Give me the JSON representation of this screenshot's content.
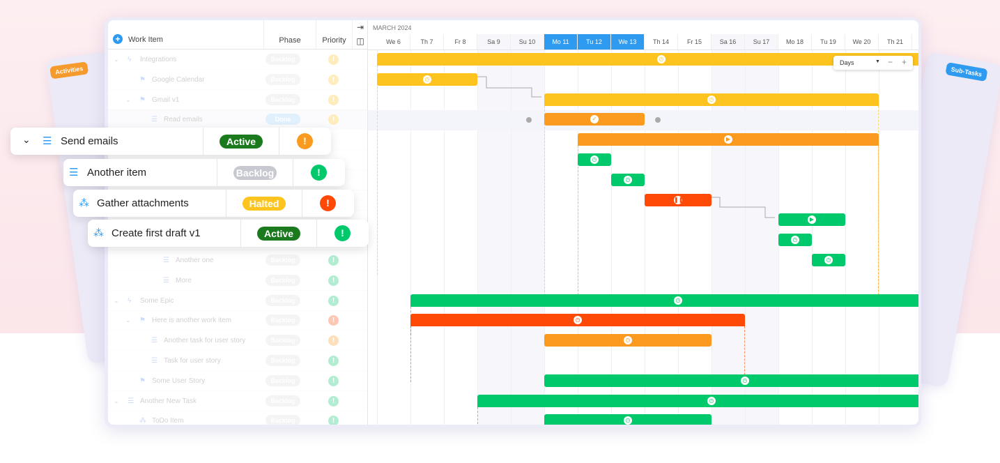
{
  "colors": {
    "yellow": "#fdc41f",
    "orange": "#fa9a1e",
    "green": "#00c96b",
    "red": "#fe4a06",
    "blue": "#2e9af0",
    "darkgreen": "#1b7a1d",
    "gray": "#c8c8d0"
  },
  "side_panels": {
    "left_tag": "Activities",
    "right_tag": "Sub-Tasks"
  },
  "table": {
    "add_icon": "plus-circle-icon",
    "col_work_item": "Work Item",
    "col_phase": "Phase",
    "col_priority": "Priority",
    "rows": [
      {
        "label": "Integrations",
        "icon": "epic-icon",
        "phase": "Backlog",
        "priority": "yellow",
        "indent": 0,
        "chev": true
      },
      {
        "label": "Google Calendar",
        "icon": "story-icon",
        "phase": "Backlog",
        "priority": "yellow",
        "indent": 1
      },
      {
        "label": "Gmail v1",
        "icon": "story-icon",
        "phase": "Backlog",
        "priority": "yellow",
        "indent": 1,
        "chev": true
      },
      {
        "label": "Read emails",
        "icon": "task-icon",
        "phase": "Done",
        "priority": "yellow",
        "indent": 2
      },
      {
        "label": "",
        "phase": "",
        "priority": ""
      },
      {
        "label": "",
        "phase": "",
        "priority": ""
      },
      {
        "label": "",
        "phase": "",
        "priority": ""
      },
      {
        "label": "",
        "phase": "",
        "priority": ""
      },
      {
        "label": "",
        "phase": "",
        "priority": ""
      },
      {
        "label": "",
        "phase": "",
        "priority": ""
      },
      {
        "label": "Another one",
        "icon": "task-icon",
        "phase": "Backlog",
        "priority": "green",
        "indent": 3
      },
      {
        "label": "More",
        "icon": "task-icon",
        "phase": "Backlog",
        "priority": "green",
        "indent": 3
      },
      {
        "label": "Some Epic",
        "icon": "epic-icon",
        "phase": "Backlog",
        "priority": "green",
        "indent": 0,
        "chev": true
      },
      {
        "label": "Here is another work item",
        "icon": "story-icon",
        "phase": "Backlog",
        "priority": "red",
        "indent": 1,
        "chev": true
      },
      {
        "label": "Another task for user story",
        "icon": "task-icon",
        "phase": "Backlog",
        "priority": "orange",
        "indent": 2
      },
      {
        "label": "Task for user story",
        "icon": "task-icon",
        "phase": "Backlog",
        "priority": "green",
        "indent": 2
      },
      {
        "label": "Some User Story",
        "icon": "story-icon",
        "phase": "Backlog",
        "priority": "green",
        "indent": 1
      },
      {
        "label": "Another New Task",
        "icon": "task-icon",
        "phase": "Backlog",
        "priority": "green",
        "indent": 0,
        "chev": true
      },
      {
        "label": "ToDo Item",
        "icon": "subtask-icon",
        "phase": "Backlog",
        "priority": "green",
        "indent": 1
      }
    ]
  },
  "cards": [
    {
      "label": "Send emails",
      "icon": "task-icon",
      "phase": "Active",
      "phase_color": "darkgreen",
      "priority": "orange"
    },
    {
      "label": "Another item",
      "icon": "task-icon",
      "phase": "Backlog",
      "phase_color": "gray",
      "priority": "green"
    },
    {
      "label": "Gather attachments",
      "icon": "hierarchy-icon",
      "phase": "Halted",
      "phase_color": "yellow",
      "priority": "red"
    },
    {
      "label": "Create first draft v1",
      "icon": "hierarchy-icon",
      "phase": "Active",
      "phase_color": "darkgreen",
      "priority": "green"
    }
  ],
  "gantt": {
    "month": "MARCH 2024",
    "zoom_select": "Days",
    "days": [
      "We 6",
      "Th 7",
      "Fr 8",
      "Sa 9",
      "Su 10",
      "Mo 11",
      "Tu 12",
      "We 13",
      "Th 14",
      "Fr 15",
      "Sa 16",
      "Su 17",
      "Mo 18",
      "Tu 19",
      "We 20",
      "Th 21"
    ],
    "highlighted_days": [
      "Mo 11",
      "Tu 12",
      "We 13"
    ],
    "bars": [
      {
        "row": 0,
        "start": "2024-03-06",
        "end": "2024-03-22",
        "color": "yellow",
        "summary": true,
        "icon": "clock"
      },
      {
        "row": 1,
        "start": "2024-03-06",
        "end": "2024-03-08",
        "color": "yellow",
        "icon": "clock"
      },
      {
        "row": 2,
        "start": "2024-03-11",
        "end": "2024-03-20",
        "color": "yellow",
        "summary": true,
        "icon": "clock"
      },
      {
        "row": 3,
        "start": "2024-03-11",
        "end": "2024-03-13",
        "color": "orange",
        "icon": "check"
      },
      {
        "row": 4,
        "start": "2024-03-12",
        "end": "2024-03-20",
        "color": "orange",
        "summary": true,
        "icon": "play"
      },
      {
        "row": 5,
        "start": "2024-03-12",
        "end": "2024-03-12",
        "color": "green",
        "icon": "clock"
      },
      {
        "row": 6,
        "start": "2024-03-13",
        "end": "2024-03-13",
        "color": "green",
        "icon": "clock"
      },
      {
        "row": 7,
        "start": "2024-03-14",
        "end": "2024-03-15",
        "color": "red",
        "icon": "pause"
      },
      {
        "row": 8,
        "start": "2024-03-18",
        "end": "2024-03-19",
        "color": "green",
        "icon": "play"
      },
      {
        "row": 9,
        "start": "2024-03-18",
        "end": "2024-03-18",
        "color": "green",
        "icon": "clock"
      },
      {
        "row": 10,
        "start": "2024-03-19",
        "end": "2024-03-19",
        "color": "green",
        "icon": "clock"
      },
      {
        "row": 12,
        "start": "2024-03-07",
        "end": "2024-03-22",
        "color": "green",
        "summary": true,
        "icon": "clock"
      },
      {
        "row": 13,
        "start": "2024-03-07",
        "end": "2024-03-16",
        "color": "red",
        "summary": true,
        "icon": "clock"
      },
      {
        "row": 14,
        "start": "2024-03-11",
        "end": "2024-03-15",
        "color": "orange",
        "icon": "clock"
      },
      {
        "row": 16,
        "start": "2024-03-11",
        "end": "2024-03-22",
        "color": "green",
        "icon": "clock"
      },
      {
        "row": 17,
        "start": "2024-03-09",
        "end": "2024-03-22",
        "color": "green",
        "summary": true,
        "icon": "clock"
      },
      {
        "row": 18,
        "start": "2024-03-11",
        "end": "2024-03-15",
        "color": "green",
        "icon": "clock"
      }
    ]
  }
}
